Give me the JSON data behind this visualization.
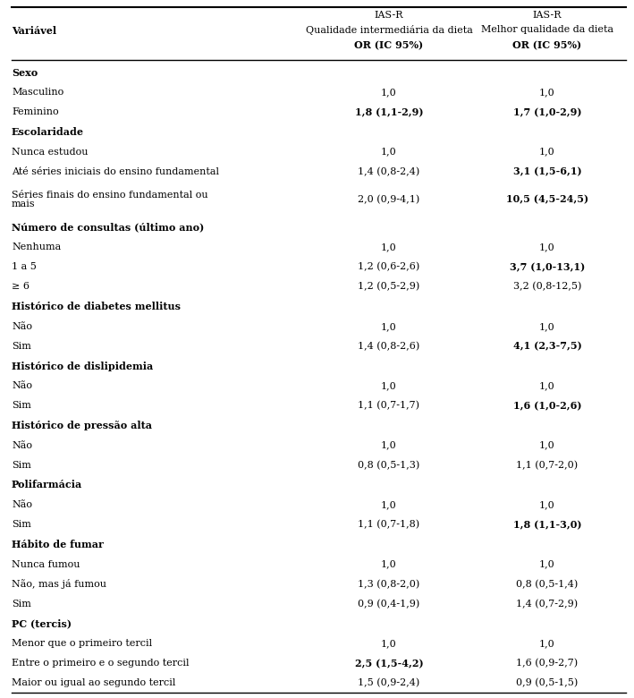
{
  "col_header_var": "Variável",
  "col_header_1_lines": [
    "IAS-R",
    "Qualidade intermediária da dieta",
    "OR (IC 95%)"
  ],
  "col_header_2_lines": [
    "IAS-R",
    "Melhor qualidade da dieta",
    "OR (IC 95%)"
  ],
  "rows": [
    {
      "label": "Sexo",
      "bold": true,
      "col1": "",
      "col2": "",
      "col1_bold": false,
      "col2_bold": false,
      "two_line": false
    },
    {
      "label": "Masculino",
      "bold": false,
      "col1": "1,0",
      "col2": "1,0",
      "col1_bold": false,
      "col2_bold": false,
      "two_line": false
    },
    {
      "label": "Feminino",
      "bold": false,
      "col1": "1,8 (1,1-2,9)",
      "col2": "1,7 (1,0-2,9)",
      "col1_bold": true,
      "col2_bold": true,
      "two_line": false
    },
    {
      "label": "Escolaridade",
      "bold": true,
      "col1": "",
      "col2": "",
      "col1_bold": false,
      "col2_bold": false,
      "two_line": false
    },
    {
      "label": "Nunca estudou",
      "bold": false,
      "col1": "1,0",
      "col2": "1,0",
      "col1_bold": false,
      "col2_bold": false,
      "two_line": false
    },
    {
      "label": "Até séries iniciais do ensino fundamental",
      "bold": false,
      "col1": "1,4 (0,8-2,4)",
      "col2": "3,1 (1,5-6,1)",
      "col1_bold": false,
      "col2_bold": true,
      "two_line": false
    },
    {
      "label": "Séries finais do ensino fundamental ou\nmais",
      "bold": false,
      "col1": "2,0 (0,9-4,1)",
      "col2": "10,5 (4,5-24,5)",
      "col1_bold": false,
      "col2_bold": true,
      "two_line": true
    },
    {
      "label": "Número de consultas (último ano)",
      "bold": true,
      "col1": "",
      "col2": "",
      "col1_bold": false,
      "col2_bold": false,
      "two_line": false
    },
    {
      "label": "Nenhuma",
      "bold": false,
      "col1": "1,0",
      "col2": "1,0",
      "col1_bold": false,
      "col2_bold": false,
      "two_line": false
    },
    {
      "label": "1 a 5",
      "bold": false,
      "col1": "1,2 (0,6-2,6)",
      "col2": "3,7 (1,0-13,1)",
      "col1_bold": false,
      "col2_bold": true,
      "two_line": false
    },
    {
      "label": "≥ 6",
      "bold": false,
      "col1": "1,2 (0,5-2,9)",
      "col2": "3,2 (0,8-12,5)",
      "col1_bold": false,
      "col2_bold": false,
      "two_line": false
    },
    {
      "label": "Histórico de diabetes mellitus",
      "bold": true,
      "col1": "",
      "col2": "",
      "col1_bold": false,
      "col2_bold": false,
      "two_line": false
    },
    {
      "label": "Não",
      "bold": false,
      "col1": "1,0",
      "col2": "1,0",
      "col1_bold": false,
      "col2_bold": false,
      "two_line": false
    },
    {
      "label": "Sim",
      "bold": false,
      "col1": "1,4 (0,8-2,6)",
      "col2": "4,1 (2,3-7,5)",
      "col1_bold": false,
      "col2_bold": true,
      "two_line": false
    },
    {
      "label": "Histórico de dislipidemia",
      "bold": true,
      "col1": "",
      "col2": "",
      "col1_bold": false,
      "col2_bold": false,
      "two_line": false
    },
    {
      "label": "Não",
      "bold": false,
      "col1": "1,0",
      "col2": "1,0",
      "col1_bold": false,
      "col2_bold": false,
      "two_line": false
    },
    {
      "label": "Sim",
      "bold": false,
      "col1": "1,1 (0,7-1,7)",
      "col2": "1,6 (1,0-2,6)",
      "col1_bold": false,
      "col2_bold": true,
      "two_line": false
    },
    {
      "label": "Histórico de pressão alta",
      "bold": true,
      "col1": "",
      "col2": "",
      "col1_bold": false,
      "col2_bold": false,
      "two_line": false
    },
    {
      "label": "Não",
      "bold": false,
      "col1": "1,0",
      "col2": "1,0",
      "col1_bold": false,
      "col2_bold": false,
      "two_line": false
    },
    {
      "label": "Sim",
      "bold": false,
      "col1": "0,8 (0,5-1,3)",
      "col2": "1,1 (0,7-2,0)",
      "col1_bold": false,
      "col2_bold": false,
      "two_line": false
    },
    {
      "label": "Polifarmácia",
      "bold": true,
      "col1": "",
      "col2": "",
      "col1_bold": false,
      "col2_bold": false,
      "two_line": false
    },
    {
      "label": "Não",
      "bold": false,
      "col1": "1,0",
      "col2": "1,0",
      "col1_bold": false,
      "col2_bold": false,
      "two_line": false
    },
    {
      "label": "Sim",
      "bold": false,
      "col1": "1,1 (0,7-1,8)",
      "col2": "1,8 (1,1-3,0)",
      "col1_bold": false,
      "col2_bold": true,
      "two_line": false
    },
    {
      "label": "Hábito de fumar",
      "bold": true,
      "col1": "",
      "col2": "",
      "col1_bold": false,
      "col2_bold": false,
      "two_line": false
    },
    {
      "label": "Nunca fumou",
      "bold": false,
      "col1": "1,0",
      "col2": "1,0",
      "col1_bold": false,
      "col2_bold": false,
      "two_line": false
    },
    {
      "label": "Não, mas já fumou",
      "bold": false,
      "col1": "1,3 (0,8-2,0)",
      "col2": "0,8 (0,5-1,4)",
      "col1_bold": false,
      "col2_bold": false,
      "two_line": false
    },
    {
      "label": "Sim",
      "bold": false,
      "col1": "0,9 (0,4-1,9)",
      "col2": "1,4 (0,7-2,9)",
      "col1_bold": false,
      "col2_bold": false,
      "two_line": false
    },
    {
      "label": "PC (tercis)",
      "bold": true,
      "col1": "",
      "col2": "",
      "col1_bold": false,
      "col2_bold": false,
      "two_line": false
    },
    {
      "label": "Menor que o primeiro tercil",
      "bold": false,
      "col1": "1,0",
      "col2": "1,0",
      "col1_bold": false,
      "col2_bold": false,
      "two_line": false
    },
    {
      "label": "Entre o primeiro e o segundo tercil",
      "bold": false,
      "col1": "2,5 (1,5-4,2)",
      "col2": "1,6 (0,9-2,7)",
      "col1_bold": true,
      "col2_bold": false,
      "two_line": false
    },
    {
      "label": "Maior ou igual ao segundo tercil",
      "bold": false,
      "col1": "1,5 (0,9-2,4)",
      "col2": "0,9 (0,5-1,5)",
      "col1_bold": false,
      "col2_bold": false,
      "two_line": false
    }
  ],
  "font_size": 8.0,
  "bg_color": "#ffffff",
  "text_color": "#000000",
  "line_color": "#000000",
  "fig_width": 7.09,
  "fig_height": 7.8,
  "dpi": 100
}
